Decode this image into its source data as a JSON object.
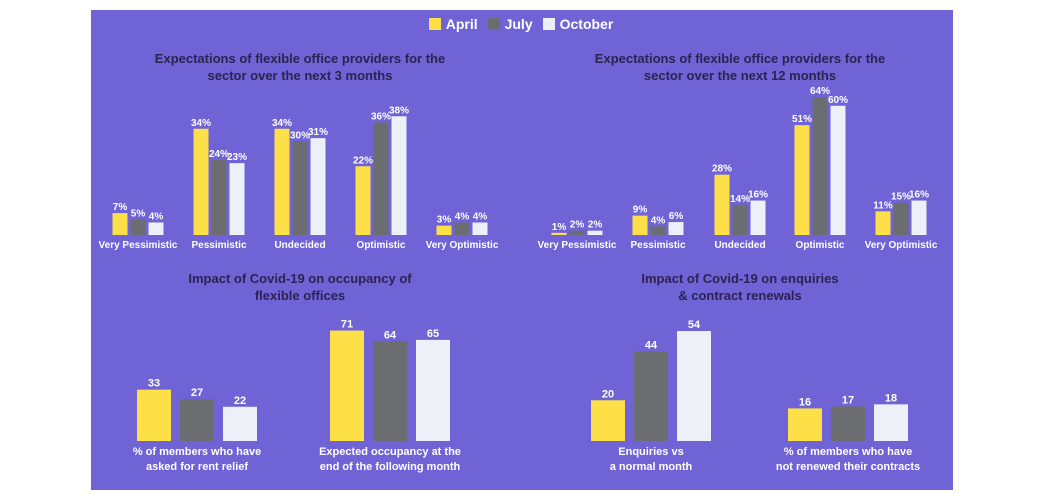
{
  "legend": {
    "items": [
      {
        "label": "April",
        "color": "#fde047"
      },
      {
        "label": "July",
        "color": "#6b6d70"
      },
      {
        "label": "October",
        "color": "#eef0f8"
      }
    ]
  },
  "titles": {
    "c1": [
      "Expectations of flexible office providers for the",
      "sector over the next 3 months"
    ],
    "c2": [
      "Expectations of flexible office providers for the",
      "sector over the next 12 months"
    ],
    "c3": [
      "Impact of Covid-19 on occupancy of",
      "flexible offices"
    ],
    "c4": [
      "Impact of Covid-19 on enquiries",
      "& contract renewals"
    ]
  },
  "colors": {
    "panel": "#6f63d6",
    "title": "#2b2450",
    "label": "#ffffff",
    "series": [
      "#fde047",
      "#6b6d70",
      "#eef0f8"
    ]
  },
  "chart_data": [
    {
      "type": "bar",
      "title": "Expectations of flexible office providers for the sector over the next 3 months",
      "categories": [
        "Very Pessimistic",
        "Pessimistic",
        "Undecided",
        "Optimistic",
        "Very Optimistic"
      ],
      "series": [
        {
          "name": "April",
          "values": [
            7,
            34,
            34,
            22,
            3
          ],
          "labels": [
            "7%",
            "34%",
            "34%",
            "22%",
            "3%"
          ]
        },
        {
          "name": "July",
          "values": [
            5,
            24,
            30,
            36,
            4
          ],
          "labels": [
            "5%",
            "24%",
            "30%",
            "36%",
            "4%"
          ]
        },
        {
          "name": "October",
          "values": [
            4,
            23,
            31,
            38,
            4
          ],
          "labels": [
            "4%",
            "23%",
            "31%",
            "38%",
            "4%"
          ]
        }
      ],
      "ylim": [
        0,
        40
      ]
    },
    {
      "type": "bar",
      "title": "Expectations of flexible office providers for the sector over the next 12 months",
      "categories": [
        "Very Pessimistic",
        "Pessimistic",
        "Undecided",
        "Optimistic",
        "Very Optimistic"
      ],
      "series": [
        {
          "name": "April",
          "values": [
            1,
            9,
            28,
            51,
            11
          ],
          "labels": [
            "1%",
            "9%",
            "28%",
            "51%",
            "11%"
          ]
        },
        {
          "name": "July",
          "values": [
            2,
            4,
            14,
            64,
            15
          ],
          "labels": [
            "2%",
            "4%",
            "14%",
            "64%",
            "15%"
          ]
        },
        {
          "name": "October",
          "values": [
            2,
            6,
            16,
            60,
            16
          ],
          "labels": [
            "2%",
            "6%",
            "16%",
            "60%",
            "16%"
          ]
        }
      ],
      "ylim": [
        0,
        65
      ]
    },
    {
      "type": "bar",
      "title": "Impact of Covid-19 on occupancy of flexible offices",
      "categories": [
        [
          "% of members who have",
          "asked for rent relief"
        ],
        [
          "Expected occupancy at the",
          "end of the following month"
        ]
      ],
      "series": [
        {
          "name": "April",
          "values": [
            33,
            71
          ],
          "labels": [
            "33",
            "71"
          ]
        },
        {
          "name": "July",
          "values": [
            27,
            64
          ],
          "labels": [
            "27",
            "64"
          ]
        },
        {
          "name": "October",
          "values": [
            22,
            65
          ],
          "labels": [
            "22",
            "65"
          ]
        }
      ],
      "ylim": [
        0,
        72
      ]
    },
    {
      "type": "bar",
      "title": "Impact of Covid-19 on enquiries & contract renewals",
      "categories": [
        [
          "Enquiries vs",
          "a normal month"
        ],
        [
          "% of members who have",
          "not renewed their contracts"
        ]
      ],
      "series": [
        {
          "name": "April",
          "values": [
            20,
            16
          ],
          "labels": [
            "20",
            "16"
          ]
        },
        {
          "name": "July",
          "values": [
            44,
            17
          ],
          "labels": [
            "44",
            "17"
          ]
        },
        {
          "name": "October",
          "values": [
            54,
            18
          ],
          "labels": [
            "54",
            "18"
          ]
        }
      ],
      "ylim": [
        0,
        55
      ]
    }
  ]
}
